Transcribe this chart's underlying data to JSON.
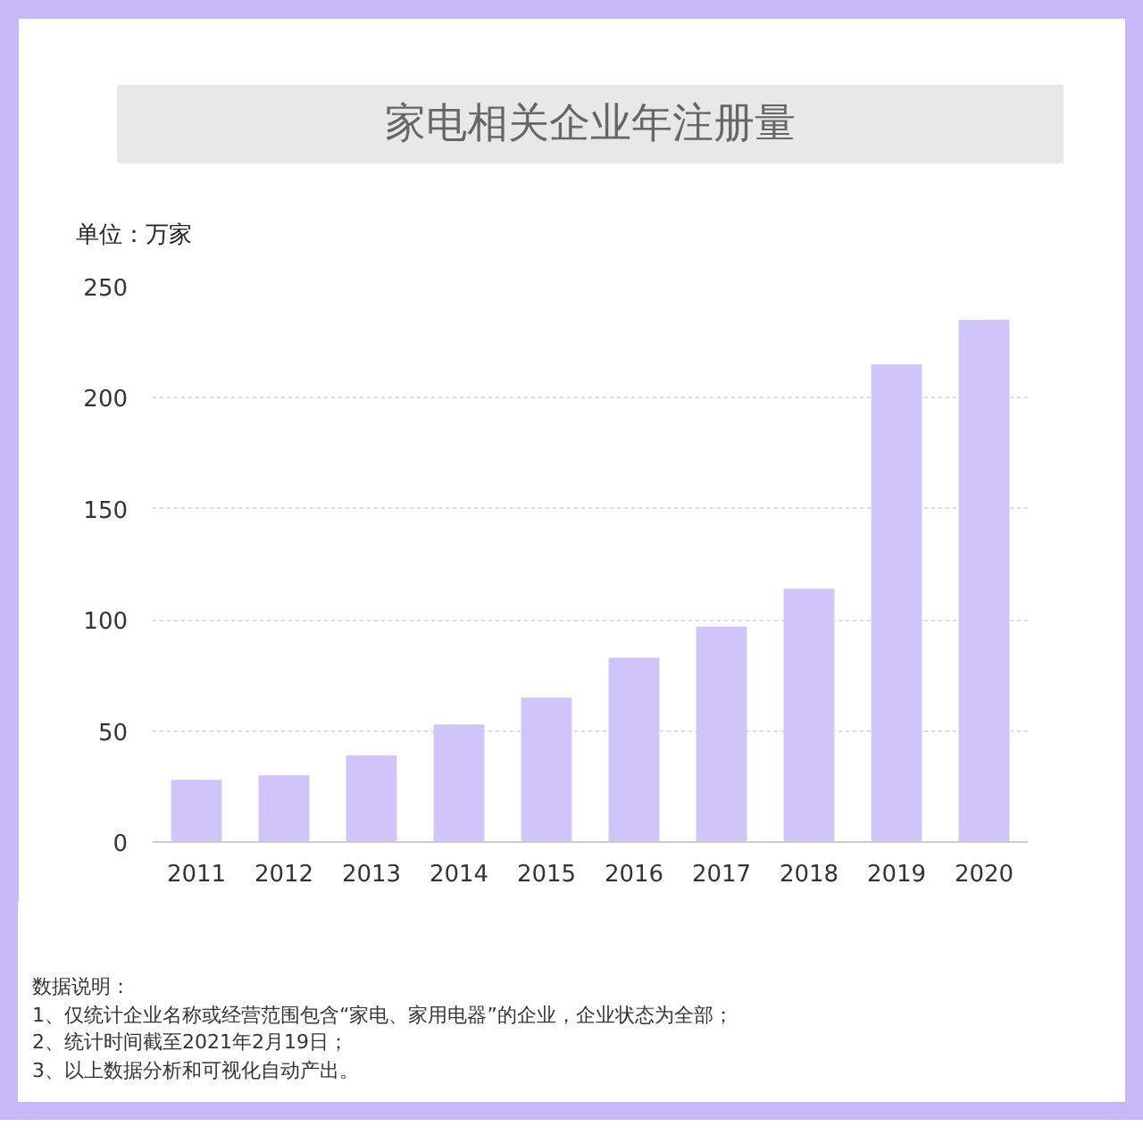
{
  "chart_data": {
    "type": "bar",
    "title": "家电相关企业年注册量",
    "ylabel": "单位：万家",
    "categories": [
      "2011",
      "2012",
      "2013",
      "2014",
      "2015",
      "2016",
      "2017",
      "2018",
      "2019",
      "2020"
    ],
    "values": [
      28,
      30,
      39,
      53,
      65,
      83,
      97,
      114,
      215,
      235
    ],
    "color": "#d0c5fa",
    "ylim": [
      0,
      250
    ],
    "yticks": [
      0,
      50,
      100,
      150,
      200,
      250
    ],
    "grid": "y",
    "annotations": [
      "数据说明：",
      "1、仅统计企业名称或经营范围包含“家电、家用电器”的企业，企业状态为全部；",
      "2、统计时间截至2021年2月19日；",
      "3、以上数据分析和可视化自动产出。"
    ]
  }
}
